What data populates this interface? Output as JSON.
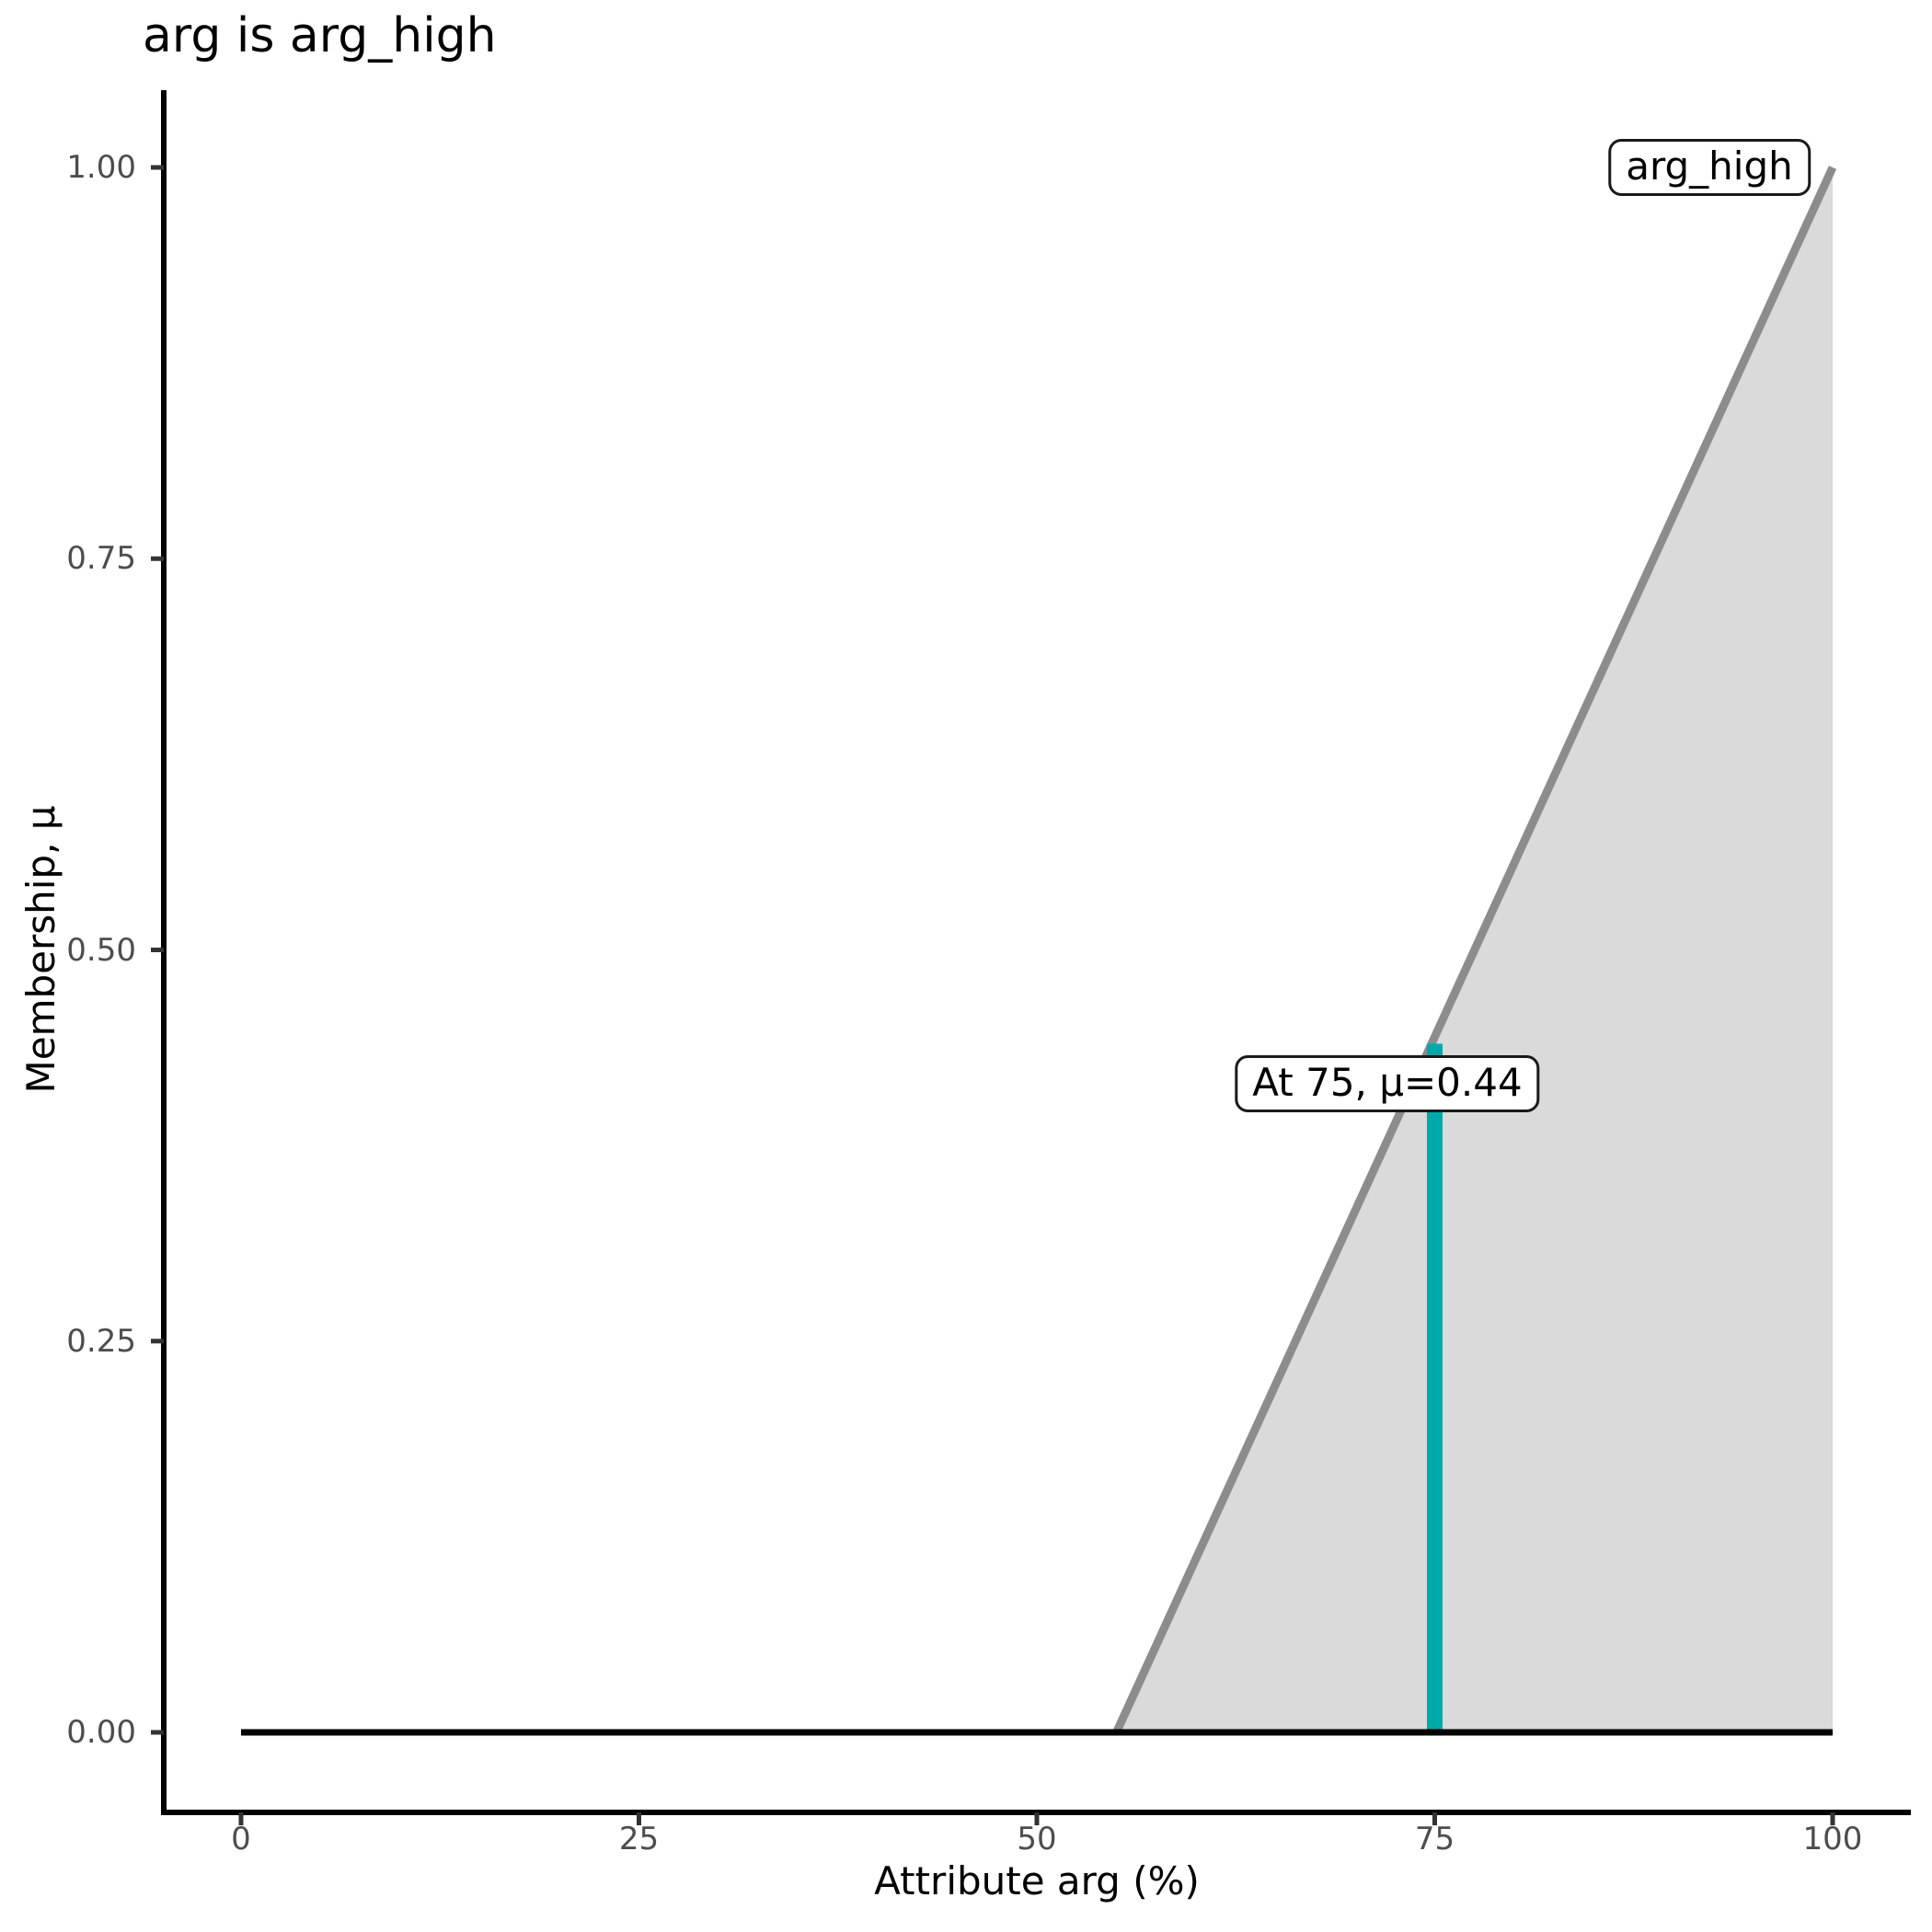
{
  "title": "arg is arg_high",
  "axes": {
    "x": {
      "label": "Attribute arg (%)",
      "tick_labels": [
        "0",
        "25",
        "50",
        "75",
        "100"
      ]
    },
    "y": {
      "label": "Membership, μ",
      "tick_labels": [
        "1.00",
        "0.75",
        "0.50",
        "0.25",
        "0.00"
      ]
    }
  },
  "annotations": {
    "set_label": "arg_high",
    "point_label": "At 75, μ=0.44"
  },
  "colors": {
    "membership_line": "#8C8C8C",
    "membership_fill": "#DADADA",
    "marker_line": "#00A9A9",
    "baseline": "#000000",
    "axis_line": "#000000",
    "tick_mark": "#333333",
    "tick_text": "#4D4D4D"
  },
  "chart_data": {
    "type": "area",
    "title": "arg is arg_high",
    "xlabel": "Attribute arg (%)",
    "ylabel": "Membership, μ",
    "xlim": [
      0,
      100
    ],
    "ylim": [
      0,
      1
    ],
    "x_ticks": [
      0,
      25,
      50,
      75,
      100
    ],
    "y_ticks": [
      1.0,
      0.75,
      0.5,
      0.25,
      0.0
    ],
    "grid": false,
    "legend": "none",
    "series": [
      {
        "name": "arg_high",
        "description": "Fuzzy membership function: 0 up to x=55, linear ramp to 1 at x=100",
        "x": [
          0,
          55,
          100
        ],
        "y": [
          0,
          0,
          1
        ]
      }
    ],
    "membership_function": {
      "zero_segment": {
        "x": [
          0,
          100
        ],
        "mu": [
          0,
          0
        ]
      },
      "ramp_segment": {
        "x": [
          55,
          100
        ],
        "mu": [
          0,
          1
        ]
      },
      "fill_polygon": {
        "x": [
          55,
          100,
          100
        ],
        "mu": [
          0,
          1,
          0
        ]
      }
    },
    "marker": {
      "x": 75,
      "mu": 0.44
    }
  }
}
